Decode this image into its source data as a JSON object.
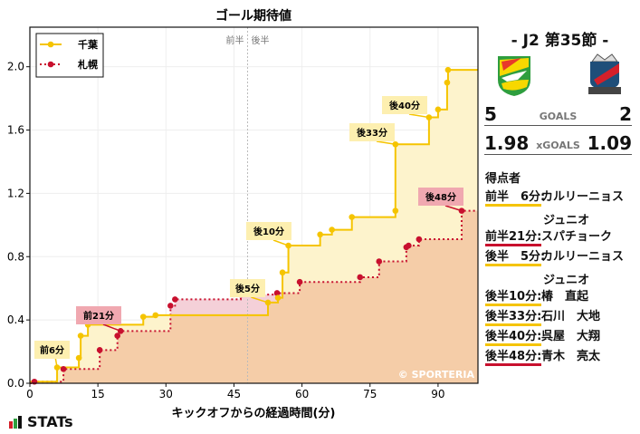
{
  "chart_data": {
    "type": "line",
    "step": true,
    "title": "ゴール期待値",
    "xlabel": "キックオフからの経過時間(分)",
    "ylabel": "",
    "xlim": [
      0,
      98.8
    ],
    "ylim": [
      0,
      2.25
    ],
    "xticks": [
      0,
      15,
      30,
      45,
      60,
      75,
      90
    ],
    "yticks": [
      0.0,
      0.4,
      0.8,
      1.2,
      1.6,
      2.0
    ],
    "grid": true,
    "legend_position": "upper left",
    "halftime_x": 48.0,
    "halftime_labels": [
      "前半",
      "後半"
    ],
    "watermark": "© SPORTERIA",
    "series": [
      {
        "name": "千葉",
        "color": "#f5c400",
        "linestyle": "solid",
        "x": [
          0,
          6,
          10.8,
          11.2,
          12.8,
          25,
          27.7,
          52.5,
          54.7,
          55.7,
          57,
          64,
          66.6,
          71,
          80.6,
          80.6,
          88,
          90,
          92,
          92.2,
          98.8
        ],
        "y": [
          0.01,
          0.1,
          0.16,
          0.3,
          0.37,
          0.42,
          0.43,
          0.51,
          0.54,
          0.7,
          0.87,
          0.94,
          0.97,
          1.05,
          1.09,
          1.51,
          1.68,
          1.73,
          1.9,
          1.98,
          1.98
        ]
      },
      {
        "name": "札幌",
        "color": "#c8102e",
        "linestyle": "dotted",
        "x": [
          0,
          1,
          7.4,
          15.4,
          19.3,
          20,
          31,
          32,
          46.5,
          54.5,
          59.5,
          72.8,
          77,
          83,
          83.5,
          85.8,
          95.2,
          98.8
        ],
        "y": [
          0.0,
          0.01,
          0.09,
          0.21,
          0.3,
          0.33,
          0.49,
          0.53,
          0.56,
          0.57,
          0.64,
          0.67,
          0.77,
          0.86,
          0.87,
          0.91,
          1.09,
          1.09
        ]
      }
    ],
    "annotations": [
      {
        "label": "前6分",
        "team": "千葉",
        "x": 6,
        "y": 0.1
      },
      {
        "label": "前21分",
        "team": "札幌",
        "x": 20,
        "y": 0.33
      },
      {
        "label": "後5分",
        "team": "千葉",
        "x": 52.5,
        "y": 0.51
      },
      {
        "label": "後10分",
        "team": "千葉",
        "x": 57,
        "y": 0.87
      },
      {
        "label": "後33分",
        "team": "千葉",
        "x": 80.6,
        "y": 1.51
      },
      {
        "label": "後40分",
        "team": "千葉",
        "x": 88,
        "y": 1.68
      },
      {
        "label": "後48分",
        "team": "札幌",
        "x": 95.2,
        "y": 1.09
      }
    ]
  },
  "match": {
    "round": "- J2 第35節 -",
    "home": {
      "name": "千葉",
      "goals": "5",
      "xgoals": "1.98",
      "logo": "jef-united-crest-icon"
    },
    "away": {
      "name": "札幌",
      "goals": "2",
      "xgoals": "1.09",
      "logo": "consadole-crest-icon"
    },
    "goals_label": "GOALS",
    "xgoals_label": "xGOALS"
  },
  "scorers": {
    "title": "得点者",
    "items": [
      {
        "time": "前半　6分:",
        "name": "カルリーニョス",
        "name2": "ジュニオ",
        "color": "#f5c400"
      },
      {
        "time": "前半21分:",
        "name": "スパチョーク",
        "name2": "",
        "color": "#c8102e"
      },
      {
        "time": "後半　5分:",
        "name": "カルリーニョス",
        "name2": "ジュニオ",
        "color": "#f5c400"
      },
      {
        "time": "後半10分:",
        "name": "椿　直起",
        "name2": "",
        "color": "#f5c400"
      },
      {
        "time": "後半33分:",
        "name": "石川　大地",
        "name2": "",
        "color": "#f5c400"
      },
      {
        "time": "後半40分:",
        "name": "呉屋　大翔",
        "name2": "",
        "color": "#f5c400"
      },
      {
        "time": "後半48分:",
        "name": "青木　亮太",
        "name2": "",
        "color": "#c8102e"
      }
    ]
  },
  "branding": {
    "stats_logo": "STATs"
  }
}
